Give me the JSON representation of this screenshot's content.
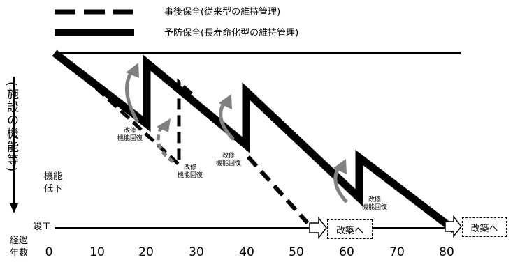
{
  "legend": {
    "dashed_label": "事後保全(従来型の維持管理)",
    "solid_label": "予防保全(長寿命化型の維持管理)"
  },
  "y_axis": {
    "label": "(施設の機能等)",
    "down_label_1": "機能",
    "down_label_2": "低下"
  },
  "x_axis": {
    "label_1": "経過",
    "label_2": "年数",
    "start_label": "竣工",
    "ticks": [
      "0",
      "10",
      "20",
      "30",
      "40",
      "50",
      "60",
      "70",
      "80"
    ]
  },
  "annotations": {
    "repair_1a": "改修",
    "repair_1b": "機能回復",
    "repair_2a": "改修",
    "repair_2b": "機能回復",
    "repair_3a": "改修",
    "repair_3b": "機能回復",
    "repair_4a": "改修",
    "repair_4b": "機能回復"
  },
  "boxes": {
    "rebuild_1": "改築へ",
    "rebuild_2": "改築へ"
  }
}
